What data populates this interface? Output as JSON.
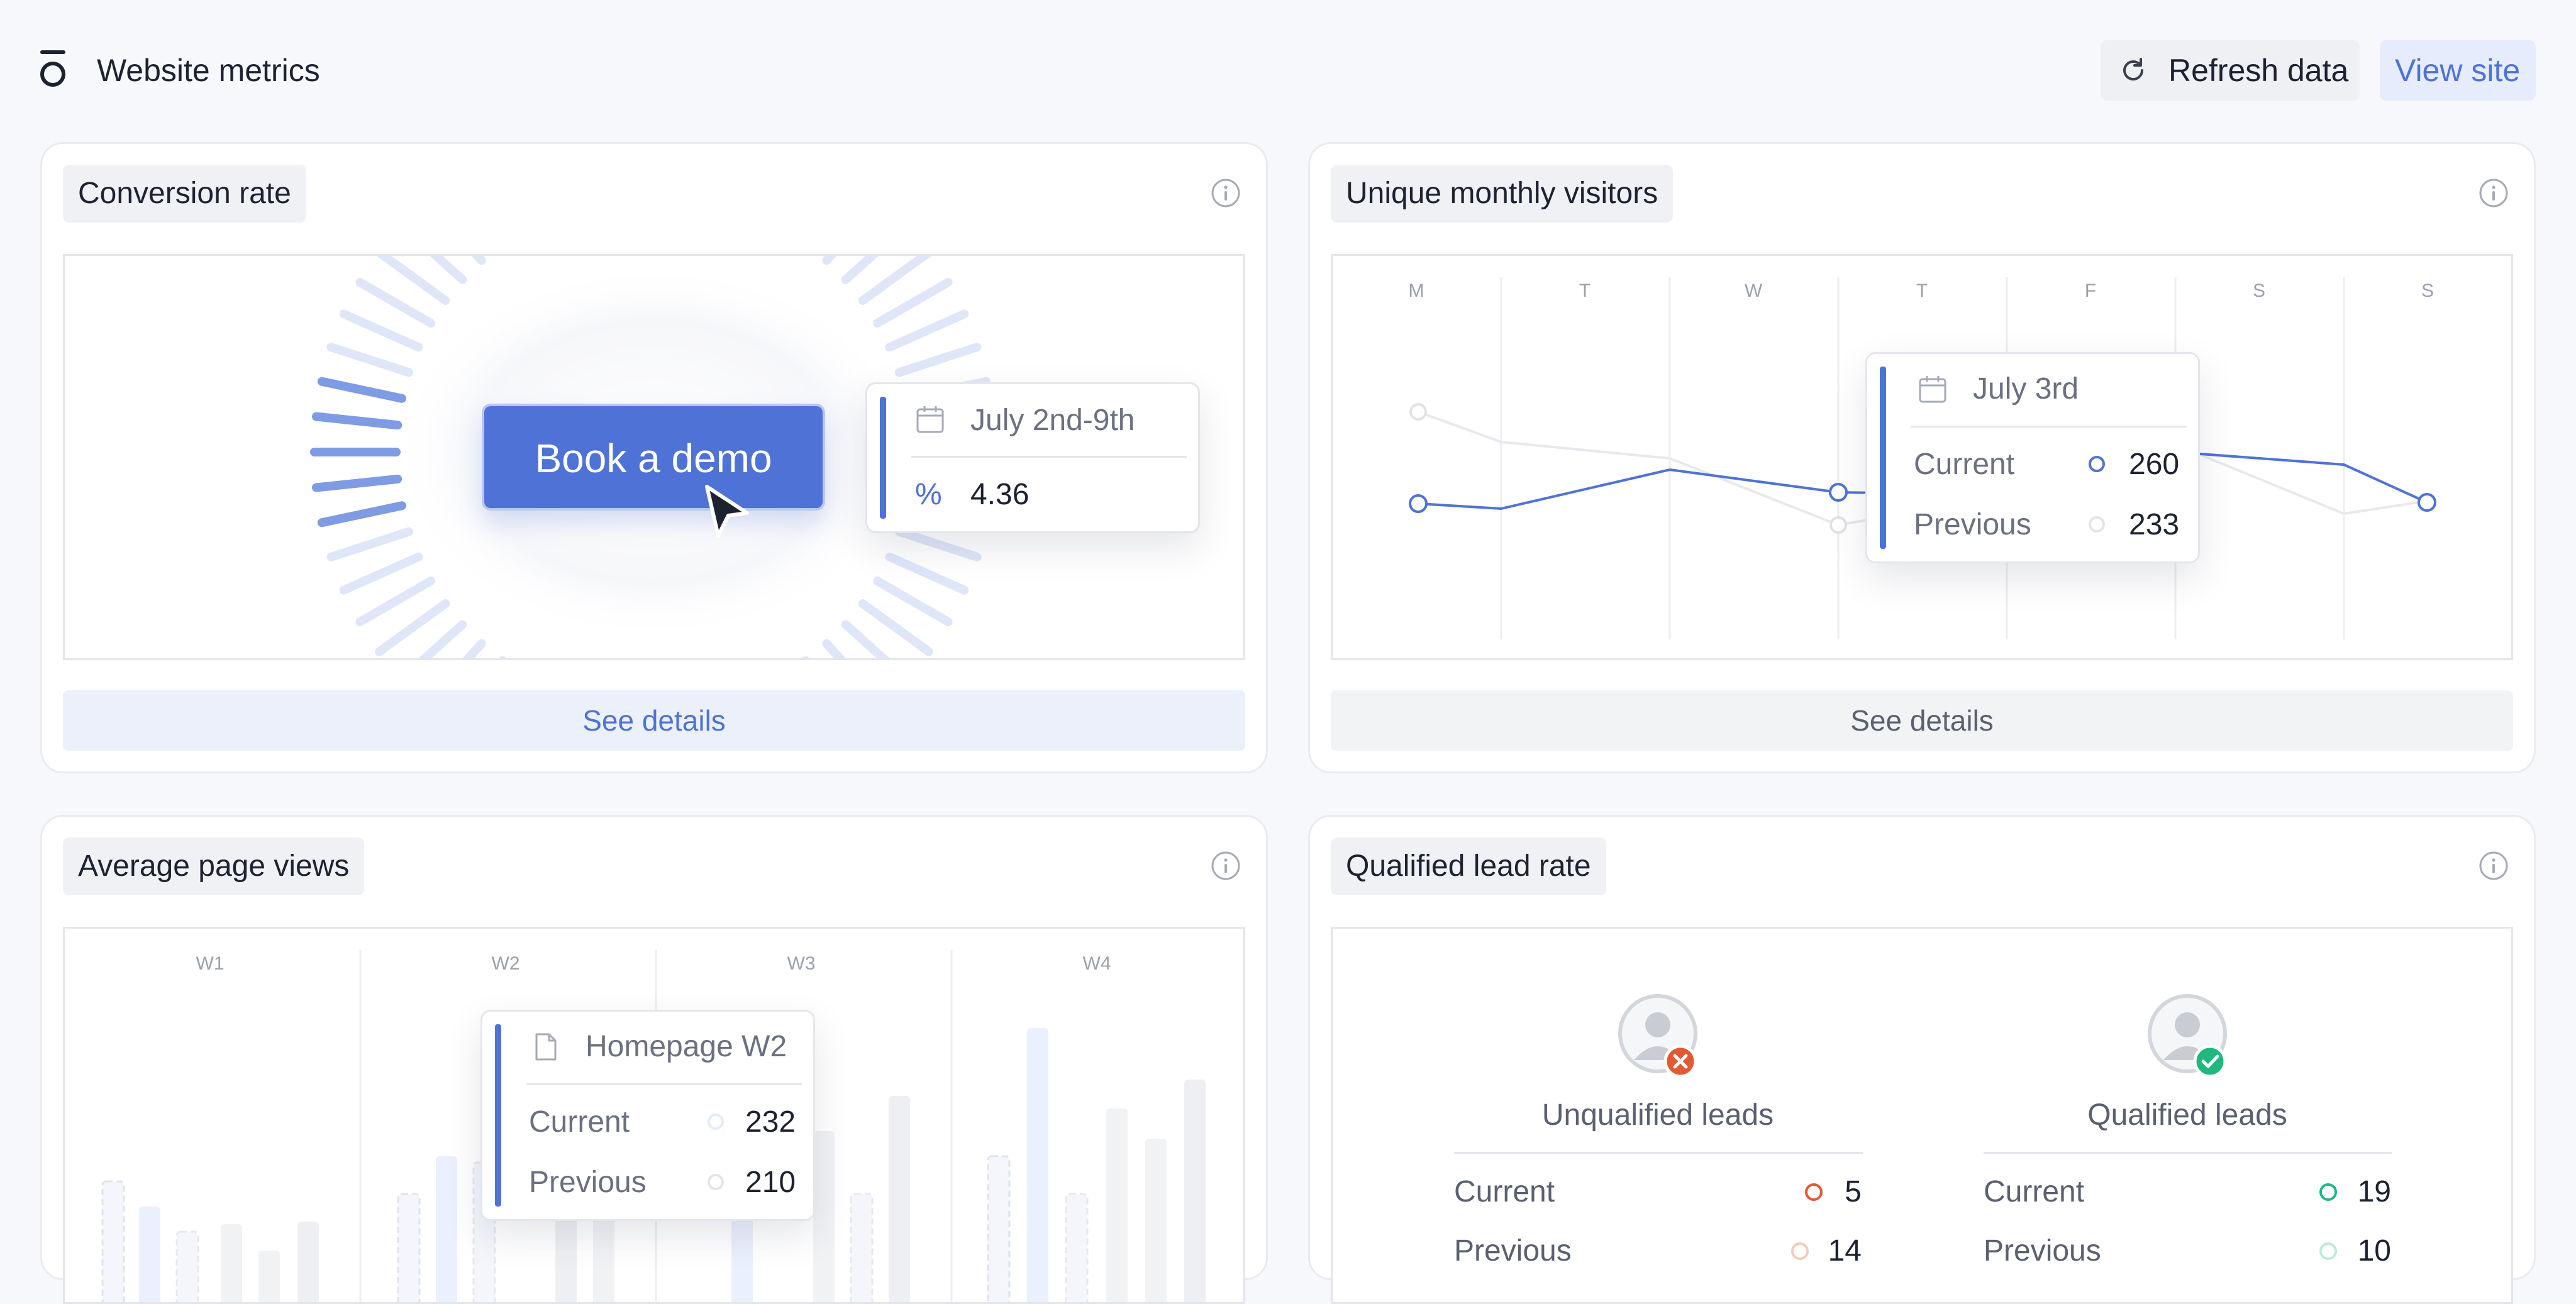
{
  "header": {
    "title": "Website metrics",
    "refresh_label": "Refresh data",
    "view_site_label": "View site"
  },
  "colors": {
    "accent": "#4f72d6",
    "accent_light": "#e6ecfb",
    "error": "#e05a33",
    "success": "#1fb980",
    "background": "#f6f8fc"
  },
  "conversion": {
    "title": "Conversion rate",
    "cta_label": "Book a demo",
    "tooltip_date": "July 2nd-9th",
    "tooltip_value": "4.36",
    "details_label": "See details"
  },
  "visitors": {
    "title": "Unique monthly visitors",
    "days": [
      "M",
      "T",
      "W",
      "T",
      "F",
      "S",
      "S"
    ],
    "tooltip_date": "July 3rd",
    "current_label": "Current",
    "current_value": "260",
    "previous_label": "Previous",
    "previous_value": "233",
    "details_label": "See details"
  },
  "pageviews": {
    "title": "Average page views",
    "weeks": [
      "W1",
      "W2",
      "W3",
      "W4"
    ],
    "tooltip_title": "Homepage W2",
    "current_label": "Current",
    "current_value": "232",
    "previous_label": "Previous",
    "previous_value": "210"
  },
  "leads": {
    "title": "Qualified lead rate",
    "unqualified": {
      "label": "Unqualified leads",
      "current_label": "Current",
      "current_value": "5",
      "previous_label": "Previous",
      "previous_value": "14"
    },
    "qualified": {
      "label": "Qualified leads",
      "current_label": "Current",
      "current_value": "19",
      "previous_label": "Previous",
      "previous_value": "10"
    }
  }
}
